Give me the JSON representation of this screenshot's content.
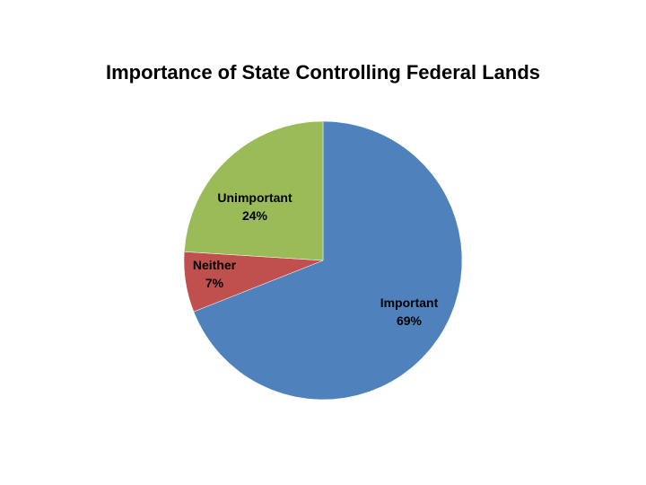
{
  "chart_data": {
    "type": "pie",
    "title": "Importance of State Controlling Federal Lands",
    "start_angle_deg": 0,
    "direction": "clockwise",
    "slices": [
      {
        "label": "Important",
        "value": 69,
        "value_label": "69%",
        "color": "#4F81BD"
      },
      {
        "label": "Neither",
        "value": 7,
        "value_label": "7%",
        "color": "#C0504D"
      },
      {
        "label": "Unimportant",
        "value": 24,
        "value_label": "24%",
        "color": "#9BBB59"
      }
    ]
  }
}
